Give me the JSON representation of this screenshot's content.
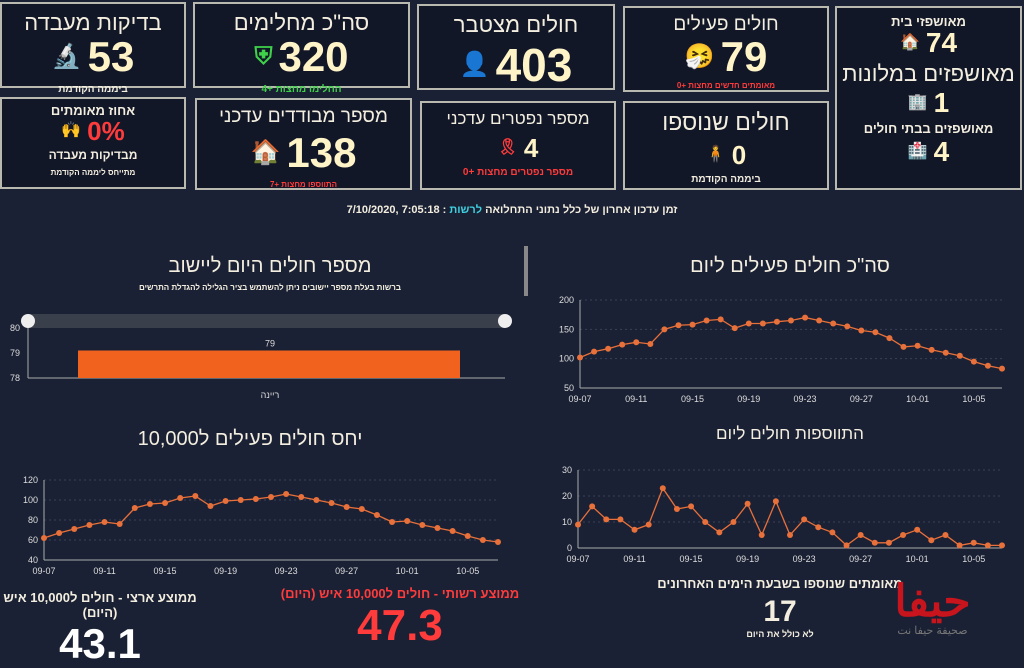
{
  "cards": {
    "lab_tests": {
      "title": "בדיקות מעבדה",
      "value": "53",
      "sub": "ביממה הקודמת",
      "icon": "lab-test-icon"
    },
    "recovered": {
      "title": "סה\"כ מחלימים",
      "value": "320",
      "sub": "החלימו מחצות +4",
      "icon": "shield-icon"
    },
    "cumulative": {
      "title": "חולים מצטבר",
      "value": "403",
      "icon": "masked-person-icon"
    },
    "active": {
      "title": "חולים פעילים",
      "value": "79",
      "sub": "מאומתים חדשים מחצות +0",
      "icon": "sneeze-icon"
    },
    "hospitalized": {
      "home_label": "מאושפזי בית",
      "home_value": "74",
      "hotel_label": "מאושפזים במלונות",
      "hotel_value": "1",
      "hospital_label": "מאושפזים בבתי חולים",
      "hospital_value": "4"
    },
    "positive_pct": {
      "title": "אחוז מאומתים",
      "value": "0%",
      "sub1": "מבדיקות מעבדה",
      "sub2": "מתייחס ליממה הקודמת"
    },
    "isolated": {
      "title": "מספר מבודדים עדכני",
      "value": "138",
      "sub": "התווספו מחצות +7"
    },
    "deaths": {
      "title": "מספר נפטרים עדכני",
      "value": "4",
      "sub": "מספר נפטרים מחצות +0"
    },
    "new_patients": {
      "title": "חולים שנוספו",
      "value": "0",
      "sub": "ביממה הקודמת"
    }
  },
  "update": {
    "label": "זמן עדכון אחרון של כלל נתוני התחלואה",
    "authority": "לרשות",
    "sep": " : ",
    "time": "7:05:18 ,7/10/2020"
  },
  "stats": {
    "national_label": "ממוצע ארצי - חולים ל10,000 איש (היום)",
    "national_value": "43.1",
    "local_label": "ממוצע רשותי - חולים ל10,000 איש (היום)",
    "local_value": "47.3",
    "week_label": "מאומתים שנוספו בשבעת הימים האחרונים",
    "week_value": "17",
    "week_note": "לא כולל את היום"
  },
  "watermark": {
    "text": "حيفا",
    "sub": "صحيفة حيفا نت"
  },
  "colors": {
    "accent": "#f2621f",
    "line": "#e8703a",
    "bg": "#1b2134"
  },
  "chart_data": [
    {
      "type": "bar",
      "title": "מספר חולים היום ליישוב",
      "subtitle": "ברשות בעלת מספר יישובים ניתן להשתמש בציר הגלילה להגדלת התרשים",
      "categories": [
        "ריינה"
      ],
      "values": [
        79
      ],
      "ylim": [
        78,
        80
      ],
      "yticks": [
        78,
        79,
        80
      ]
    },
    {
      "type": "line",
      "title": "סה\"כ חולים פעילים ליום",
      "ylim": [
        50,
        200
      ],
      "yticks": [
        50,
        100,
        150,
        200
      ],
      "xticks": [
        "09-07",
        "09-11",
        "09-15",
        "09-19",
        "09-23",
        "09-27",
        "10-01",
        "10-05"
      ],
      "values": [
        102,
        112,
        117,
        124,
        128,
        125,
        150,
        157,
        158,
        165,
        167,
        152,
        160,
        160,
        163,
        165,
        170,
        165,
        160,
        155,
        148,
        145,
        135,
        120,
        122,
        115,
        110,
        105,
        95,
        88,
        83
      ]
    },
    {
      "type": "line",
      "title": "יחס חולים פעילים ל10,000",
      "ylim": [
        40,
        120
      ],
      "yticks": [
        40,
        60,
        80,
        100,
        120
      ],
      "xticks": [
        "09-07",
        "09-11",
        "09-15",
        "09-19",
        "09-23",
        "09-27",
        "10-01",
        "10-05"
      ],
      "values": [
        62,
        67,
        71,
        75,
        78,
        76,
        92,
        96,
        97,
        102,
        104,
        94,
        99,
        100,
        101,
        103,
        106,
        103,
        100,
        97,
        93,
        91,
        85,
        78,
        79,
        75,
        72,
        69,
        64,
        60,
        58
      ]
    },
    {
      "type": "line",
      "title": "התווספות חולים ליום",
      "ylim": [
        0,
        30
      ],
      "yticks": [
        0,
        10,
        20,
        30
      ],
      "xticks": [
        "09-07",
        "09-11",
        "09-15",
        "09-19",
        "09-23",
        "09-27",
        "10-01",
        "10-05"
      ],
      "values": [
        9,
        16,
        11,
        11,
        7,
        9,
        23,
        15,
        16,
        10,
        6,
        10,
        17,
        5,
        18,
        5,
        11,
        8,
        6,
        1,
        5,
        2,
        2,
        5,
        7,
        3,
        5,
        1,
        2,
        1,
        1
      ]
    }
  ]
}
